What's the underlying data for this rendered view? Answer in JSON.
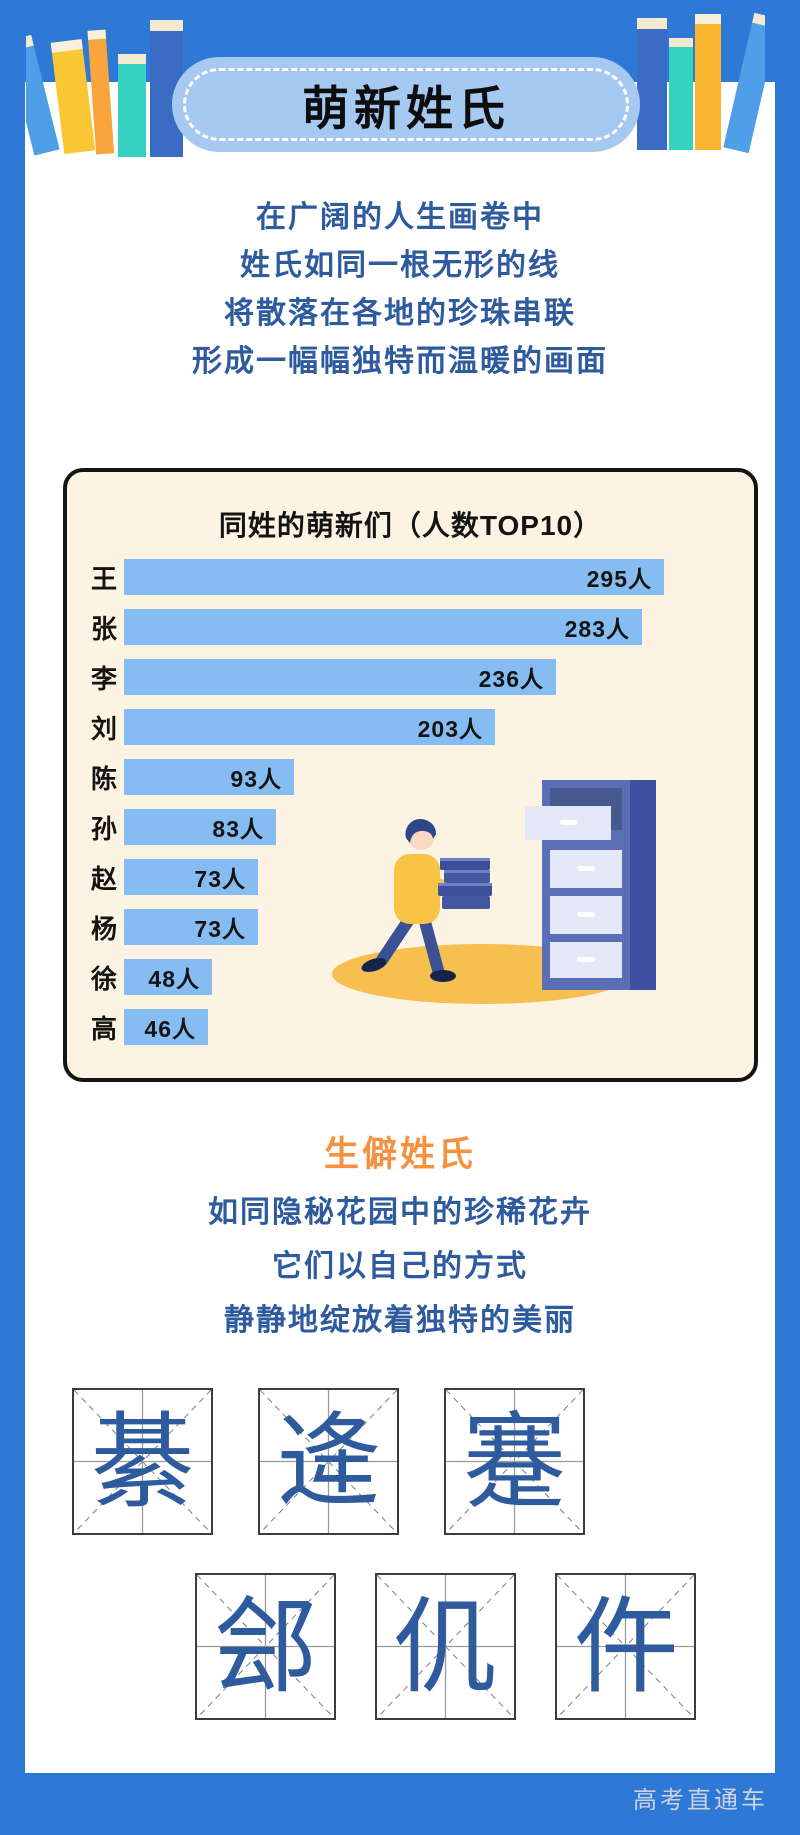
{
  "header": {
    "title": "萌新姓氏"
  },
  "intro": {
    "lines": [
      "在广阔的人生画卷中",
      "姓氏如同一根无形的线",
      "将散落在各地的珍珠串联",
      "形成一幅幅独特而温暖的画面"
    ]
  },
  "chart_data": {
    "type": "bar",
    "orientation": "horizontal",
    "title": "同姓的萌新们（人数TOP10）",
    "categories": [
      "王",
      "张",
      "李",
      "刘",
      "陈",
      "孙",
      "赵",
      "杨",
      "徐",
      "高"
    ],
    "values": [
      295,
      283,
      236,
      203,
      93,
      83,
      73,
      73,
      48,
      46
    ],
    "unit": "人",
    "value_labels": [
      "295人",
      "283人",
      "236人",
      "203人",
      "93人",
      "83人",
      "73人",
      "73人",
      "48人",
      "46人"
    ],
    "xlim": [
      0,
      300
    ],
    "grid": false,
    "value_labels_inside": true,
    "bar_color": "#85bdf2"
  },
  "rare": {
    "heading": "生僻姓氏",
    "lines": [
      "如同隐秘花园中的珍稀花卉",
      "它们以自己的方式",
      "静静地绽放着独特的美丽"
    ],
    "surname_rows": [
      [
        "綦",
        "逄",
        "蹇"
      ],
      [
        "郐",
        "仉",
        "仵"
      ]
    ]
  },
  "footer": {
    "watermark": "高考直通车"
  },
  "colors": {
    "frame_blue": "#2e78d6",
    "pill_blue": "#a6c9f2",
    "text_blue": "#2d5b9e",
    "bar_blue": "#85bdf2",
    "panel_cream": "#fdf3e3",
    "accent_orange": "#f5913f"
  }
}
